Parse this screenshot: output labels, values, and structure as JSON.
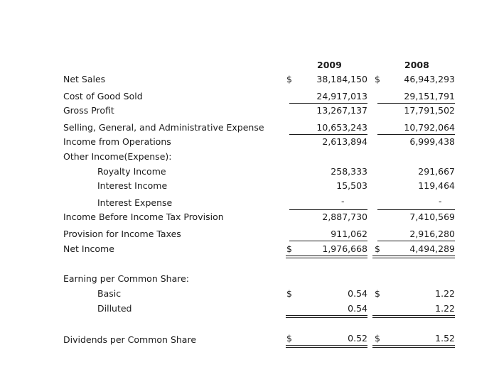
{
  "columns": {
    "year1": "2009",
    "year2": "2008"
  },
  "rows": {
    "net_sales": {
      "label": "Net Sales",
      "cur1": "$",
      "v1": "38,184,150",
      "cur2": "$",
      "v2": "46,943,293"
    },
    "cogs": {
      "label": "Cost of Good Sold",
      "v1": "24,917,013",
      "v2": "29,151,791"
    },
    "gross_profit": {
      "label": "Gross Profit",
      "v1": "13,267,137",
      "v2": "17,791,502"
    },
    "sga": {
      "label": "Selling, General, and Administrative Expense",
      "v1": "10,653,243",
      "v2": "10,792,064"
    },
    "income_ops": {
      "label": "Income from Operations",
      "v1": "2,613,894",
      "v2": "6,999,438"
    },
    "other_income": {
      "label": "Other Income(Expense):"
    },
    "royalty": {
      "label": "Royalty Income",
      "v1": "258,333",
      "v2": "291,667"
    },
    "interest_inc": {
      "label": "Interest Income",
      "v1": "15,503",
      "v2": "119,464"
    },
    "interest_exp": {
      "label": "Interest Expense",
      "v1": "-",
      "v2": "-"
    },
    "income_before": {
      "label": "Income Before Income Tax Provision",
      "v1": "2,887,730",
      "v2": "7,410,569"
    },
    "tax_provision": {
      "label": "Provision for Income Taxes",
      "v1": "911,062",
      "v2": "2,916,280"
    },
    "net_income": {
      "label": "Net Income",
      "cur1": "$",
      "v1": "1,976,668",
      "cur2": "$",
      "v2": "4,494,289"
    },
    "eps_header": {
      "label": "Earning per Common Share:"
    },
    "eps_basic": {
      "label": "Basic",
      "cur1": "$",
      "v1": "0.54",
      "cur2": "$",
      "v2": "1.22"
    },
    "eps_diluted": {
      "label": "Dilluted",
      "v1": "0.54",
      "v2": "1.22"
    },
    "dividends": {
      "label": "Dividends per Common Share",
      "cur1": "$",
      "v1": "0.52",
      "cur2": "$",
      "v2": "1.52"
    }
  }
}
